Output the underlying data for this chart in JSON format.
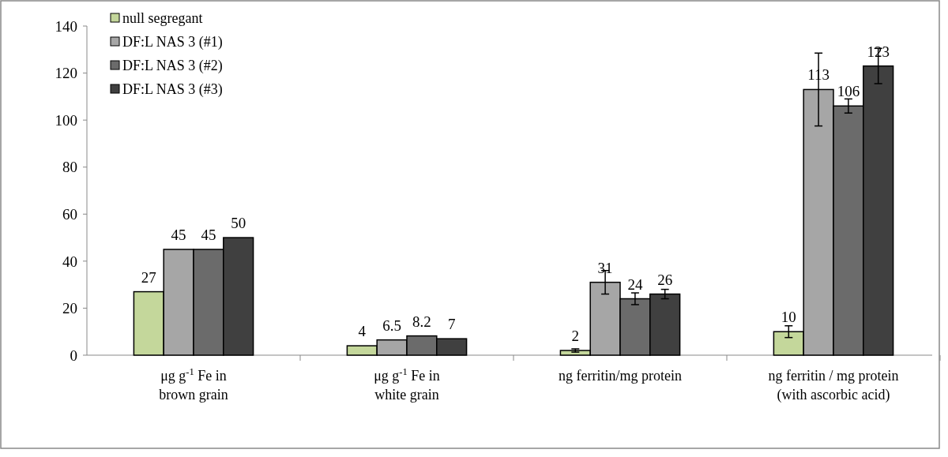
{
  "chart_data": {
    "type": "bar",
    "categories": [
      "μg g$^{-1}$ Fe in\nbrown grain",
      "μg g$^{-1}$ Fe in\nwhite grain",
      "ng ferritin/mg protein",
      "ng ferritin / mg protein\n(with ascorbic acid)"
    ],
    "series": [
      {
        "name": "null segregant",
        "color": "#c4d79b",
        "values": [
          27,
          4,
          2,
          10
        ],
        "errors": [
          null,
          null,
          0.7,
          2.5
        ]
      },
      {
        "name": "DF:L NAS 3 (#1)",
        "color": "#a6a6a6",
        "values": [
          45,
          6.5,
          31,
          113
        ],
        "errors": [
          null,
          null,
          5,
          15.5
        ]
      },
      {
        "name": "DF:L NAS 3 (#2)",
        "color": "#6b6b6b",
        "values": [
          45,
          8.2,
          24,
          106
        ],
        "errors": [
          null,
          null,
          2.5,
          3
        ]
      },
      {
        "name": "DF:L NAS 3 (#3)",
        "color": "#404040",
        "values": [
          50,
          7,
          26,
          123
        ],
        "errors": [
          null,
          null,
          2,
          7.5
        ]
      }
    ],
    "ylim": [
      0,
      140
    ],
    "yticks": [
      0,
      20,
      40,
      60,
      80,
      100,
      120,
      140
    ],
    "data_labels": true,
    "legend": "top left",
    "grid": false
  }
}
